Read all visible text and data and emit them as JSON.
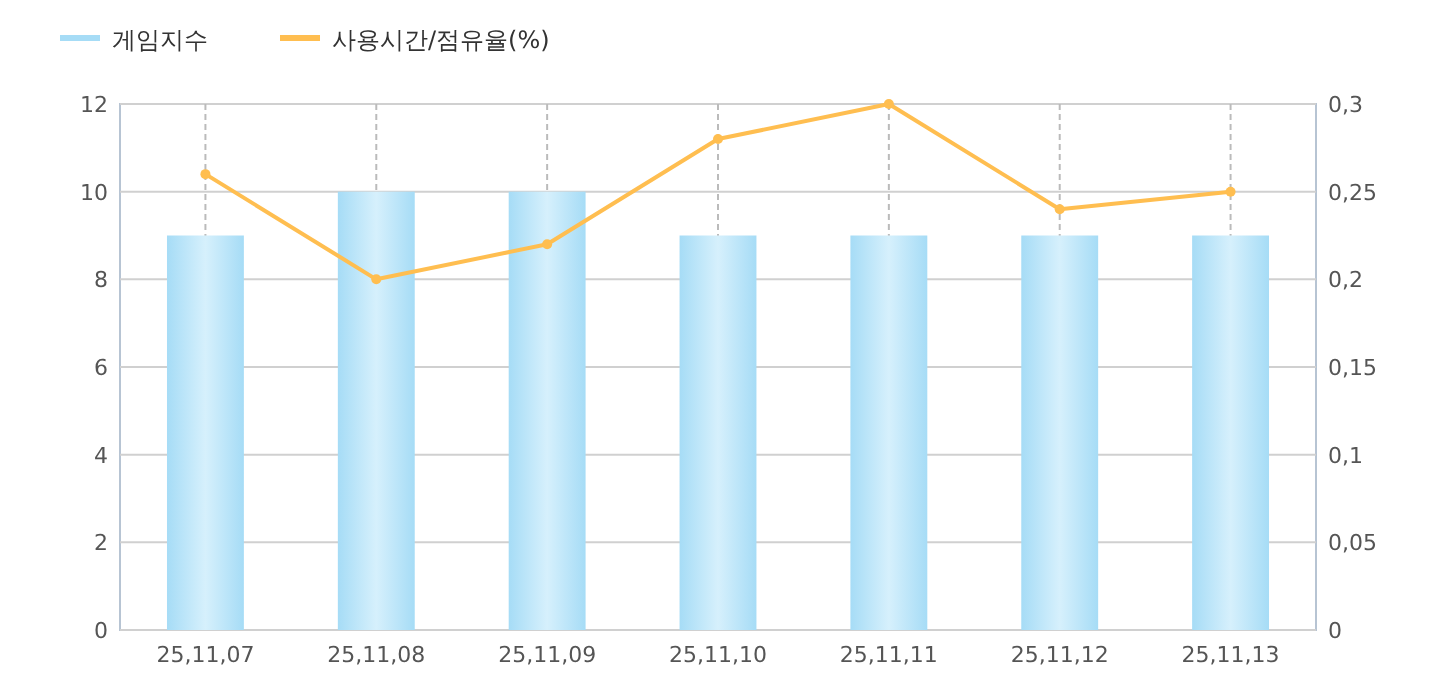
{
  "chart_data": {
    "type": "bar",
    "categories": [
      "25,11,07",
      "25,11,08",
      "25,11,09",
      "25,11,10",
      "25,11,11",
      "25,11,12",
      "25,11,13"
    ],
    "series": [
      {
        "name": "게임지수",
        "color": "#a6dcf6",
        "values": [
          9,
          10,
          10,
          9,
          9,
          9,
          9
        ]
      },
      {
        "name": "사용시간/점유율(%)",
        "type": "line",
        "axis": "y2",
        "color": "#ffbe50",
        "marker": "circle",
        "values": [
          0.26,
          0.2,
          0.22,
          0.28,
          0.3,
          0.24,
          0.25
        ]
      }
    ],
    "ylim": [
      0,
      12
    ],
    "yticks": [
      0,
      2,
      4,
      6,
      8,
      10,
      12
    ],
    "y2lim": [
      0,
      0.3
    ],
    "y2ticks": [
      0,
      {
        "value": 0.05,
        "label": "0,05"
      },
      {
        "value": 0.1,
        "label": "0,1"
      },
      {
        "value": 0.15,
        "label": "0,15"
      },
      {
        "value": 0.2,
        "label": "0,2"
      },
      {
        "value": 0.25,
        "label": "0,25"
      },
      {
        "value": 0.3,
        "label": "0,3"
      }
    ],
    "grid": true,
    "legend": "top left"
  }
}
